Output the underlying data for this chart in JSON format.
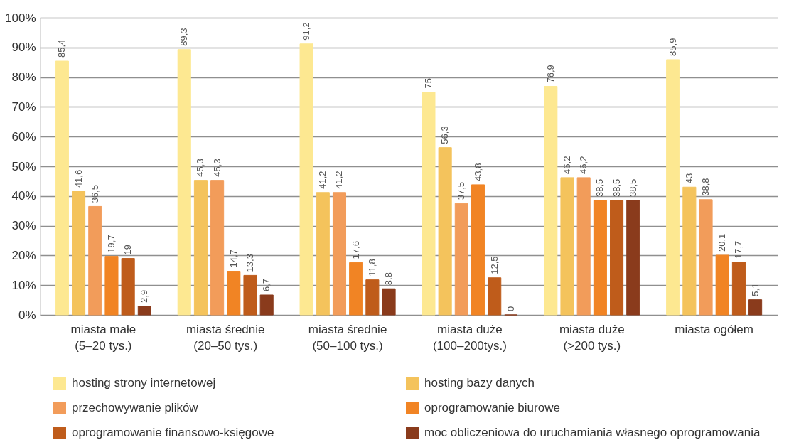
{
  "chart_data": {
    "type": "bar",
    "categories": [
      "miasta małe\n(5–20 tys.)",
      "miasta średnie\n(20–50 tys.)",
      "miasta średnie\n(50–100 tys.)",
      "miasta duże\n(100–200tys.)",
      "miasta duże\n(>200 tys.)",
      "miasta ogółem"
    ],
    "series": [
      {
        "name": "hosting strony internetowej",
        "color": "#fde891",
        "values": [
          85.4,
          89.3,
          91.2,
          75,
          76.9,
          85.9
        ],
        "value_labels": [
          "85,4",
          "89,3",
          "91,2",
          "75",
          "76,9",
          "85,9"
        ]
      },
      {
        "name": "hosting bazy danych",
        "color": "#f4c35c",
        "values": [
          41.6,
          45.3,
          41.2,
          56.3,
          46.2,
          43
        ],
        "value_labels": [
          "41,6",
          "45,3",
          "41,2",
          "56,3",
          "46,2",
          "43"
        ]
      },
      {
        "name": "przechowywanie plików",
        "color": "#f29c5a",
        "values": [
          36.5,
          45.3,
          41.2,
          37.5,
          46.2,
          38.8
        ],
        "value_labels": [
          "36,5",
          "45,3",
          "41,2",
          "37,5",
          "46,2",
          "38,8"
        ]
      },
      {
        "name": "oprogramowanie biurowe",
        "color": "#f18424",
        "values": [
          19.7,
          14.7,
          17.6,
          43.8,
          38.5,
          20.1
        ],
        "value_labels": [
          "19,7",
          "14,7",
          "17,6",
          "43,8",
          "38,5",
          "20,1"
        ]
      },
      {
        "name": "oprogramowanie finansowo-księgowe",
        "color": "#bf5c1b",
        "values": [
          19,
          13.3,
          11.8,
          12.5,
          38.5,
          17.7
        ],
        "value_labels": [
          "19",
          "13,3",
          "11,8",
          "12,5",
          "38,5",
          "17,7"
        ]
      },
      {
        "name": "moc obliczeniowa do uruchamiania własnego oprogramowania",
        "color": "#8a3b1c",
        "values": [
          2.9,
          6.7,
          8.8,
          0,
          38.5,
          5.1
        ],
        "value_labels": [
          "2,9",
          "6,7",
          "8,8",
          "0",
          "38,5",
          "5,1"
        ]
      }
    ],
    "ylim": [
      0,
      100
    ],
    "yticks": [
      {
        "value": 0,
        "label": "0%"
      },
      {
        "value": 10,
        "label": "10%"
      },
      {
        "value": 20,
        "label": "20%"
      },
      {
        "value": 30,
        "label": "30%"
      },
      {
        "value": 40,
        "label": "40%"
      },
      {
        "value": 50,
        "label": "50%"
      },
      {
        "value": 60,
        "label": "60%"
      },
      {
        "value": 70,
        "label": "70%"
      },
      {
        "value": 80,
        "label": "80%"
      },
      {
        "value": 90,
        "label": "90%"
      },
      {
        "value": 100,
        "label": "100%"
      }
    ],
    "grid": "y",
    "legend": "bottom"
  }
}
